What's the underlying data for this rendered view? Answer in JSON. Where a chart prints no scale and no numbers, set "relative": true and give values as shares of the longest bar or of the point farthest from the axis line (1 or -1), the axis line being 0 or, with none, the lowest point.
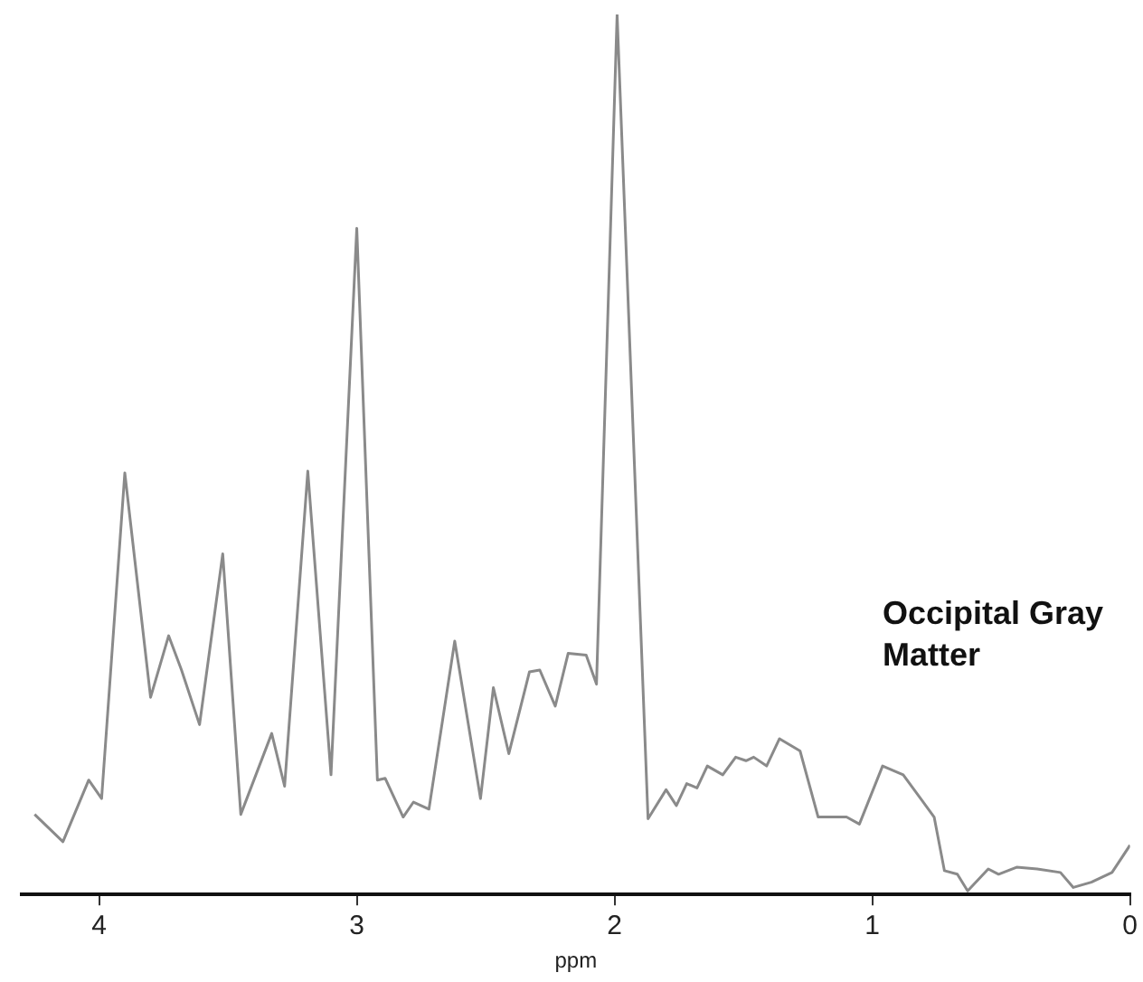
{
  "chart_data": {
    "type": "line",
    "relative": true,
    "xlabel": "ppm",
    "xlim": [
      4.3,
      0
    ],
    "xticks": [
      4,
      3,
      2,
      1,
      0
    ],
    "marker": "none",
    "annotations": [
      "Occipital Gray Matter"
    ],
    "x": [
      4.25,
      4.14,
      4.04,
      3.99,
      3.9,
      3.8,
      3.73,
      3.68,
      3.61,
      3.52,
      3.45,
      3.33,
      3.28,
      3.19,
      3.1,
      3.0,
      2.92,
      2.89,
      2.82,
      2.78,
      2.72,
      2.62,
      2.52,
      2.47,
      2.41,
      2.33,
      2.29,
      2.23,
      2.18,
      2.11,
      2.07,
      1.99,
      1.87,
      1.8,
      1.76,
      1.72,
      1.68,
      1.64,
      1.58,
      1.53,
      1.49,
      1.46,
      1.41,
      1.36,
      1.28,
      1.21,
      1.1,
      1.05,
      0.96,
      0.88,
      0.76,
      0.72,
      0.67,
      0.63,
      0.55,
      0.51,
      0.44,
      0.36,
      0.27,
      0.22,
      0.15,
      0.07,
      0.0
    ],
    "series": [
      {
        "color": "#8a8a8a",
        "values": [
          0.091,
          0.06,
          0.13,
          0.109,
          0.479,
          0.224,
          0.294,
          0.255,
          0.193,
          0.387,
          0.091,
          0.183,
          0.123,
          0.481,
          0.136,
          0.757,
          0.13,
          0.132,
          0.088,
          0.105,
          0.097,
          0.288,
          0.109,
          0.235,
          0.16,
          0.253,
          0.255,
          0.214,
          0.274,
          0.272,
          0.239,
          1.0,
          0.086,
          0.119,
          0.101,
          0.126,
          0.121,
          0.146,
          0.136,
          0.156,
          0.152,
          0.156,
          0.146,
          0.177,
          0.163,
          0.088,
          0.088,
          0.08,
          0.146,
          0.136,
          0.088,
          0.027,
          0.023,
          0.004,
          0.029,
          0.023,
          0.031,
          0.029,
          0.025,
          0.008,
          0.014,
          0.025,
          0.056
        ]
      }
    ]
  }
}
